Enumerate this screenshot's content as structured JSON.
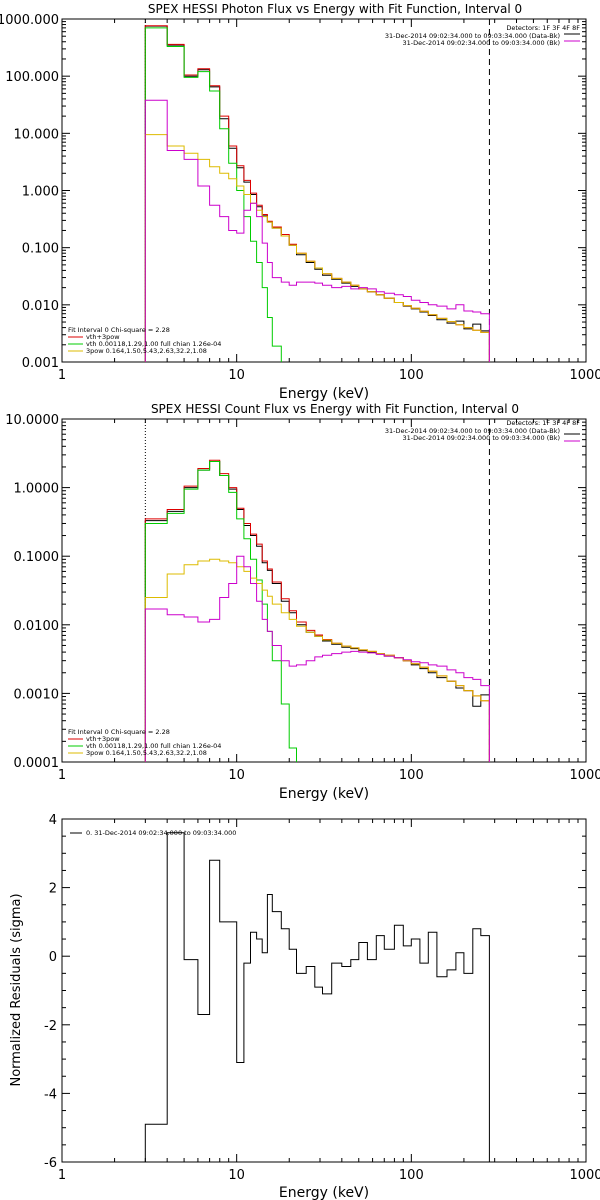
{
  "chart_data": [
    {
      "type": "line",
      "panel": "photon",
      "title": "SPEX HESSI Photon Flux vs Energy with Fit Function, Interval 0",
      "xlabel": "Energy (keV)",
      "ylabel": "",
      "xscale": "log",
      "yscale": "log",
      "xlim": [
        1,
        1000
      ],
      "ylim": [
        0.001,
        1000
      ],
      "x_ticks": [
        "1",
        "10",
        "100",
        "1000"
      ],
      "y_ticks": [
        "0.001",
        "0.010",
        "0.100",
        "1.000",
        "10.000",
        "100.000",
        "1000.000"
      ],
      "fit_range": [
        3.0,
        280
      ],
      "legend_top": {
        "detectors": "Detectors: 1F 3F 4F 8F",
        "entries": [
          {
            "label": "31-Dec-2014 09:02:34.000 to 09:03:34.000 (Data-Bk)",
            "color": "#000000"
          },
          {
            "label": "31-Dec-2014 09:02:34.000 to 09:03:34.000 (Bk)",
            "color": "#cc00cc"
          }
        ]
      },
      "legend_bottom": {
        "header": "Fit Interval 0   Chi-square = 2.28",
        "entries": [
          {
            "label": "vth+3pow",
            "color": "#dd0000"
          },
          {
            "label": "vth 0.00118,1.29,1.00  full chian 1.26e-04",
            "color": "#00cc00"
          },
          {
            "label": "3pow 0.164,1.50,5.43,2.63,32.2,1.08",
            "color": "#ddbb00"
          }
        ]
      },
      "series": [
        {
          "name": "31-Dec-2014 09:02:34.000 to 09:03:34.000 (Data-Bk)",
          "color": "#000000",
          "edges": [
            3.0,
            4.0,
            5.0,
            6.0,
            7.0,
            8.0,
            9.0,
            10.0,
            11.0,
            12.0,
            13.0,
            14.0,
            15.0,
            16.0,
            18.0,
            20.0,
            22.0,
            25.0,
            28.0,
            31.0,
            35.0,
            40.0,
            45.0,
            50.0,
            56.0,
            63.0,
            70.0,
            80.0,
            90.0,
            100.0,
            112.0,
            125.0,
            140.0,
            160.0,
            180.0,
            200.0,
            225.0,
            250.0,
            280.0
          ],
          "values": [
            750,
            350,
            100,
            130,
            65,
            18,
            5.5,
            2.5,
            1.4,
            0.85,
            0.52,
            0.36,
            0.28,
            0.22,
            0.16,
            0.11,
            0.075,
            0.055,
            0.042,
            0.033,
            0.028,
            0.024,
            0.021,
            0.019,
            0.017,
            0.015,
            0.013,
            0.011,
            0.0095,
            0.0085,
            0.0075,
            0.0065,
            0.0055,
            0.0048,
            0.0052,
            0.0038,
            0.0046,
            0.0035
          ]
        },
        {
          "name": "vth+3pow",
          "color": "#dd0000",
          "edges": [
            3.0,
            4.0,
            5.0,
            6.0,
            7.0,
            8.0,
            9.0,
            10.0,
            11.0,
            12.0,
            13.0,
            14.0,
            15.0,
            16.0,
            18.0,
            20.0,
            22.0,
            25.0,
            28.0,
            31.0,
            35.0,
            40.0,
            45.0,
            50.0,
            56.0,
            63.0,
            70.0,
            80.0,
            90.0,
            100.0,
            112.0,
            125.0,
            140.0,
            160.0,
            180.0,
            200.0,
            225.0,
            250.0,
            280.0
          ],
          "values": [
            760,
            360,
            105,
            135,
            68,
            20,
            6.0,
            2.7,
            1.5,
            0.9,
            0.55,
            0.38,
            0.29,
            0.23,
            0.17,
            0.115,
            0.08,
            0.058,
            0.044,
            0.035,
            0.029,
            0.025,
            0.022,
            0.019,
            0.017,
            0.015,
            0.013,
            0.011,
            0.0097,
            0.0087,
            0.0077,
            0.0067,
            0.0058,
            0.0051,
            0.0045,
            0.004,
            0.0036,
            0.0033
          ]
        },
        {
          "name": "vth",
          "color": "#00cc00",
          "edges": [
            3.0,
            4.0,
            5.0,
            6.0,
            7.0,
            8.0,
            9.0,
            10.0,
            11.0,
            12.0,
            13.0,
            14.0,
            15.0,
            16.0,
            18.0
          ],
          "values": [
            700,
            330,
            95,
            120,
            55,
            12,
            3.0,
            1.0,
            0.35,
            0.13,
            0.055,
            0.02,
            0.006,
            0.0019
          ]
        },
        {
          "name": "3pow",
          "color": "#ddbb00",
          "edges": [
            3.0,
            4.0,
            5.0,
            6.0,
            7.0,
            8.0,
            9.0,
            10.0,
            11.0,
            12.0,
            13.0,
            14.0,
            15.0,
            16.0,
            18.0,
            20.0,
            22.0,
            25.0,
            28.0,
            31.0,
            35.0,
            40.0,
            45.0,
            50.0,
            56.0,
            63.0,
            70.0,
            80.0,
            90.0,
            100.0,
            112.0,
            125.0,
            140.0,
            160.0,
            180.0,
            200.0,
            225.0,
            250.0,
            280.0
          ],
          "values": [
            9.5,
            6.0,
            4.5,
            3.5,
            2.6,
            2.0,
            1.6,
            1.2,
            0.85,
            0.6,
            0.45,
            0.35,
            0.28,
            0.22,
            0.16,
            0.11,
            0.08,
            0.058,
            0.044,
            0.035,
            0.029,
            0.025,
            0.022,
            0.019,
            0.017,
            0.015,
            0.013,
            0.011,
            0.0097,
            0.0087,
            0.0077,
            0.0067,
            0.0058,
            0.0051,
            0.0045,
            0.004,
            0.0036,
            0.0033
          ]
        },
        {
          "name": "31-Dec-2014 09:02:34.000 to 09:03:34.000 (Bk)",
          "color": "#cc00cc",
          "edges": [
            3.0,
            4.0,
            5.0,
            6.0,
            7.0,
            8.0,
            9.0,
            10.0,
            11.0,
            12.0,
            13.0,
            14.0,
            15.0,
            16.0,
            18.0,
            20.0,
            22.0,
            25.0,
            28.0,
            31.0,
            35.0,
            40.0,
            45.0,
            50.0,
            56.0,
            63.0,
            70.0,
            80.0,
            90.0,
            100.0,
            112.0,
            125.0,
            140.0,
            160.0,
            180.0,
            200.0,
            225.0,
            250.0,
            280.0
          ],
          "values": [
            38,
            5.0,
            3.5,
            1.2,
            0.55,
            0.35,
            0.2,
            0.18,
            0.45,
            0.6,
            0.35,
            0.12,
            0.055,
            0.03,
            0.025,
            0.022,
            0.025,
            0.025,
            0.024,
            0.022,
            0.02,
            0.021,
            0.019,
            0.02,
            0.019,
            0.017,
            0.016,
            0.015,
            0.014,
            0.012,
            0.011,
            0.01,
            0.0095,
            0.0085,
            0.01,
            0.0078,
            0.0075,
            0.007
          ]
        }
      ]
    },
    {
      "type": "line",
      "panel": "count",
      "title": "SPEX HESSI Count Flux vs Energy with Fit Function, Interval 0",
      "xlabel": "Energy (keV)",
      "ylabel": "",
      "xscale": "log",
      "yscale": "log",
      "xlim": [
        1,
        1000
      ],
      "ylim": [
        0.0001,
        10
      ],
      "x_ticks": [
        "1",
        "10",
        "100",
        "1000"
      ],
      "y_ticks": [
        "0.0001",
        "0.0010",
        "0.0100",
        "0.1000",
        "1.0000",
        "10.0000"
      ],
      "fit_range": [
        3.0,
        280
      ],
      "legend_top": {
        "detectors": "Detectors: 1F 3F 4F 8F",
        "entries": [
          {
            "label": "31-Dec-2014 09:02:34.000 to 09:03:34.000 (Data-Bk)",
            "color": "#000000"
          },
          {
            "label": "31-Dec-2014 09:02:34.000 to 09:03:34.000 (Bk)",
            "color": "#cc00cc"
          }
        ]
      },
      "legend_bottom": {
        "header": "Fit Interval 0   Chi-square = 2.28",
        "entries": [
          {
            "label": "vth+3pow",
            "color": "#dd0000"
          },
          {
            "label": "vth 0.00118,1.29,1.00  full chian 1.26e-04",
            "color": "#00cc00"
          },
          {
            "label": "3pow 0.164,1.50,5.43,2.63,32.2,1.08",
            "color": "#ddbb00"
          }
        ]
      },
      "series": [
        {
          "name": "31-Dec-2014 09:02:34.000 to 09:03:34.000 (Data-Bk)",
          "color": "#000000",
          "edges": [
            3.0,
            4.0,
            5.0,
            6.0,
            7.0,
            8.0,
            9.0,
            10.0,
            11.0,
            12.0,
            13.0,
            14.0,
            15.0,
            16.0,
            18.0,
            20.0,
            22.0,
            25.0,
            28.0,
            31.0,
            35.0,
            40.0,
            45.0,
            50.0,
            56.0,
            63.0,
            70.0,
            80.0,
            90.0,
            100.0,
            112.0,
            125.0,
            140.0,
            160.0,
            180.0,
            200.0,
            225.0,
            250.0,
            280.0
          ],
          "values": [
            0.33,
            0.45,
            1.0,
            1.8,
            2.4,
            1.5,
            0.95,
            0.48,
            0.28,
            0.2,
            0.14,
            0.08,
            0.062,
            0.04,
            0.022,
            0.015,
            0.01,
            0.0078,
            0.0068,
            0.0058,
            0.0052,
            0.0047,
            0.0045,
            0.0042,
            0.004,
            0.0038,
            0.0035,
            0.0033,
            0.003,
            0.0026,
            0.0023,
            0.002,
            0.0017,
            0.0015,
            0.0012,
            0.0011,
            0.00065,
            0.00095
          ]
        },
        {
          "name": "vth+3pow",
          "color": "#dd0000",
          "edges": [
            3.0,
            4.0,
            5.0,
            6.0,
            7.0,
            8.0,
            9.0,
            10.0,
            11.0,
            12.0,
            13.0,
            14.0,
            15.0,
            16.0,
            18.0,
            20.0,
            22.0,
            25.0,
            28.0,
            31.0,
            35.0,
            40.0,
            45.0,
            50.0,
            56.0,
            63.0,
            70.0,
            80.0,
            90.0,
            100.0,
            112.0,
            125.0,
            140.0,
            160.0,
            180.0,
            200.0,
            225.0,
            250.0,
            280.0
          ],
          "values": [
            0.35,
            0.48,
            1.05,
            1.9,
            2.5,
            1.6,
            1.0,
            0.5,
            0.3,
            0.21,
            0.15,
            0.085,
            0.065,
            0.042,
            0.024,
            0.016,
            0.011,
            0.0083,
            0.0071,
            0.0061,
            0.0054,
            0.0049,
            0.0046,
            0.0043,
            0.0041,
            0.0038,
            0.0036,
            0.0033,
            0.003,
            0.0027,
            0.0024,
            0.0021,
            0.0018,
            0.0015,
            0.0013,
            0.0011,
            0.00092,
            0.00078
          ]
        },
        {
          "name": "vth",
          "color": "#00cc00",
          "edges": [
            3.0,
            4.0,
            5.0,
            6.0,
            7.0,
            8.0,
            9.0,
            10.0,
            11.0,
            12.0,
            13.0,
            14.0,
            15.0,
            16.0,
            18.0,
            20.0,
            22.0
          ],
          "values": [
            0.3,
            0.42,
            0.95,
            1.8,
            2.4,
            1.5,
            0.85,
            0.35,
            0.18,
            0.09,
            0.045,
            0.02,
            0.008,
            0.003,
            0.0007,
            0.00016
          ]
        },
        {
          "name": "3pow",
          "color": "#ddbb00",
          "edges": [
            3.0,
            4.0,
            5.0,
            6.0,
            7.0,
            8.0,
            9.0,
            10.0,
            11.0,
            12.0,
            13.0,
            14.0,
            15.0,
            16.0,
            18.0,
            20.0,
            22.0,
            25.0,
            28.0,
            31.0,
            35.0,
            40.0,
            45.0,
            50.0,
            56.0,
            63.0,
            70.0,
            80.0,
            90.0,
            100.0,
            112.0,
            125.0,
            140.0,
            160.0,
            180.0,
            200.0,
            225.0,
            250.0,
            280.0
          ],
          "values": [
            0.025,
            0.055,
            0.075,
            0.085,
            0.09,
            0.085,
            0.08,
            0.07,
            0.06,
            0.048,
            0.04,
            0.032,
            0.026,
            0.02,
            0.015,
            0.012,
            0.0095,
            0.0078,
            0.0068,
            0.006,
            0.0054,
            0.0049,
            0.0046,
            0.0043,
            0.0041,
            0.0038,
            0.0036,
            0.0033,
            0.003,
            0.0027,
            0.0024,
            0.0021,
            0.0018,
            0.0015,
            0.0013,
            0.0011,
            0.00092,
            0.00078
          ]
        },
        {
          "name": "31-Dec-2014 09:02:34.000 to 09:03:34.000 (Bk)",
          "color": "#cc00cc",
          "edges": [
            3.0,
            4.0,
            5.0,
            6.0,
            7.0,
            8.0,
            9.0,
            10.0,
            11.0,
            12.0,
            13.0,
            14.0,
            15.0,
            16.0,
            18.0,
            20.0,
            22.0,
            25.0,
            28.0,
            31.0,
            35.0,
            40.0,
            45.0,
            50.0,
            56.0,
            63.0,
            70.0,
            80.0,
            90.0,
            100.0,
            112.0,
            125.0,
            140.0,
            160.0,
            180.0,
            200.0,
            225.0,
            250.0,
            280.0
          ],
          "values": [
            0.017,
            0.014,
            0.013,
            0.011,
            0.012,
            0.025,
            0.04,
            0.1,
            0.07,
            0.04,
            0.022,
            0.012,
            0.008,
            0.005,
            0.003,
            0.0025,
            0.0026,
            0.003,
            0.0034,
            0.0036,
            0.0038,
            0.004,
            0.0041,
            0.004,
            0.0039,
            0.0037,
            0.0035,
            0.0033,
            0.0031,
            0.0029,
            0.0028,
            0.0026,
            0.0025,
            0.0022,
            0.002,
            0.0017,
            0.0016,
            0.0013
          ]
        }
      ]
    },
    {
      "type": "line",
      "panel": "residuals",
      "title": "",
      "xlabel": "Energy (keV)",
      "ylabel": "Normalized Residuals (sigma)",
      "xscale": "log",
      "yscale": "linear",
      "xlim": [
        1,
        1000
      ],
      "ylim": [
        -6,
        4
      ],
      "x_ticks": [
        "1",
        "10",
        "100",
        "1000"
      ],
      "y_ticks": [
        "4",
        "2",
        "0",
        "-2",
        "-4",
        "-6"
      ],
      "legend": "0. 31-Dec-2014 09:02:34.000 to 09:03:34.000",
      "series": [
        {
          "name": "0. 31-Dec-2014 09:02:34.000 to 09:03:34.000",
          "color": "#000000",
          "edges": [
            3.0,
            4.0,
            5.0,
            6.0,
            7.0,
            8.0,
            9.0,
            10.0,
            11.0,
            12.0,
            13.0,
            14.0,
            15.0,
            16.0,
            18.0,
            20.0,
            22.0,
            25.0,
            28.0,
            31.0,
            35.0,
            40.0,
            45.0,
            50.0,
            56.0,
            63.0,
            70.0,
            80.0,
            90.0,
            100.0,
            112.0,
            125.0,
            140.0,
            160.0,
            180.0,
            200.0,
            225.0,
            250.0,
            280.0
          ],
          "values": [
            -4.9,
            3.6,
            -0.1,
            -1.7,
            2.8,
            1.0,
            1.0,
            -3.1,
            -0.2,
            0.7,
            0.5,
            0.1,
            1.8,
            1.3,
            0.8,
            0.2,
            -0.5,
            -0.3,
            -0.9,
            -1.1,
            -0.2,
            -0.3,
            -0.1,
            0.4,
            -0.1,
            0.6,
            0.2,
            0.9,
            0.3,
            0.5,
            -0.2,
            0.7,
            -0.6,
            -0.4,
            0.1,
            -0.5,
            0.8,
            0.6
          ]
        }
      ]
    }
  ]
}
